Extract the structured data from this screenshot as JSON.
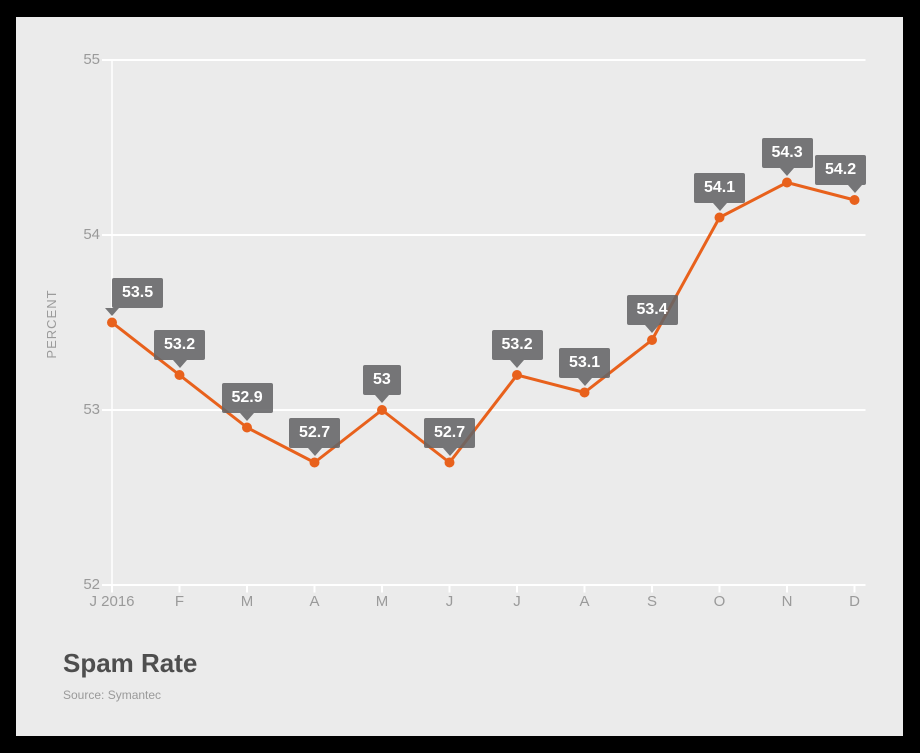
{
  "chart_data": {
    "type": "line",
    "x": [
      "J 2016",
      "F",
      "M",
      "A",
      "M",
      "J",
      "J",
      "A",
      "S",
      "O",
      "N",
      "D"
    ],
    "values": [
      53.5,
      53.2,
      52.9,
      52.7,
      53,
      52.7,
      53.2,
      53.1,
      53.4,
      54.1,
      54.3,
      54.2
    ],
    "point_labels": [
      "53.5",
      "53.2",
      "52.9",
      "52.7",
      "53",
      "52.7",
      "53.2",
      "53.1",
      "53.4",
      "54.1",
      "54.3",
      "54.2"
    ],
    "title": "Spam Rate",
    "source": "Source: Symantec",
    "xlabel": "",
    "ylabel": "PERCENT",
    "yticks": [
      "52",
      "53",
      "54",
      "55"
    ],
    "ylim": [
      52,
      55
    ],
    "grid": true,
    "legend": "none",
    "colors": {
      "line": "#e8611c",
      "marker": "#e8611c",
      "tooltip_bg": "rgba(100,100,103,0.88)",
      "tooltip_text": "#ffffff",
      "grid_line": "#ffffff",
      "axis_text": "#9a9a9a",
      "panel_bg": "#ebebeb",
      "page_border": "#000000"
    }
  }
}
